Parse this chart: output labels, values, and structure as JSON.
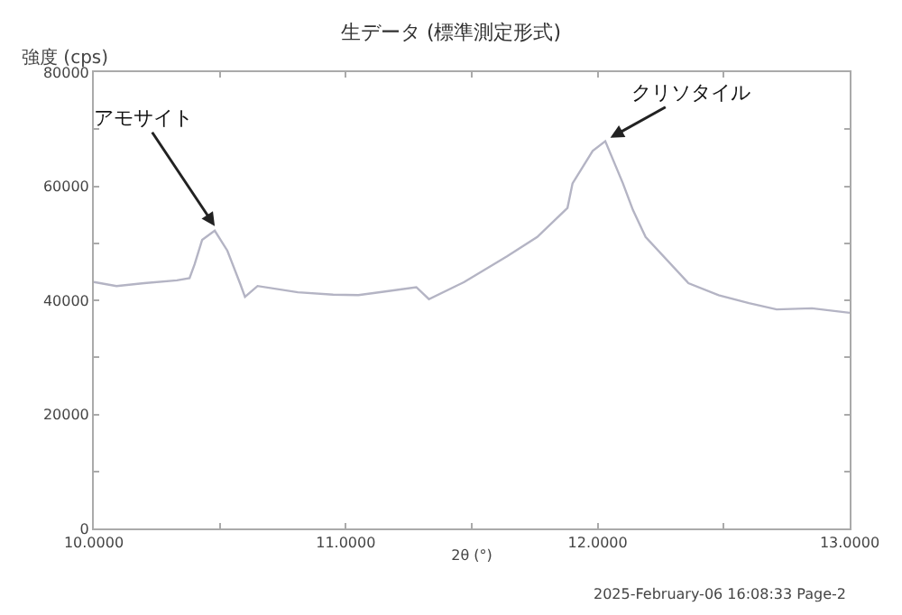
{
  "chart_data": {
    "type": "line",
    "title": "生データ (標準測定形式)",
    "xlabel": "2θ (°)",
    "ylabel": "強度 (cps)",
    "x": [
      10.0,
      10.09,
      10.2,
      10.33,
      10.38,
      10.4,
      10.43,
      10.48,
      10.53,
      10.58,
      10.6,
      10.65,
      10.81,
      10.95,
      11.05,
      11.15,
      11.28,
      11.33,
      11.47,
      11.64,
      11.76,
      11.88,
      11.9,
      11.98,
      12.03,
      12.1,
      12.14,
      12.19,
      12.36,
      12.48,
      12.6,
      12.71,
      12.85,
      13.0
    ],
    "series": [
      {
        "color": "#b4b4c4",
        "values": [
          43200,
          42500,
          43000,
          43500,
          43900,
          46300,
          50600,
          52200,
          48700,
          43000,
          40600,
          42500,
          41400,
          41000,
          40900,
          41500,
          42300,
          40200,
          43200,
          47700,
          51100,
          56200,
          60500,
          66200,
          67900,
          60500,
          55800,
          51100,
          43000,
          40900,
          39500,
          38400,
          38600,
          37800
        ]
      }
    ],
    "xlim": [
      10,
      13
    ],
    "xticks": [
      {
        "value": 10,
        "label": "10.0000"
      },
      {
        "value": 10.5,
        "label": null
      },
      {
        "value": 11,
        "label": "11.0000"
      },
      {
        "value": 11.5,
        "label": null
      },
      {
        "value": 12,
        "label": "12.0000"
      },
      {
        "value": 12.5,
        "label": null
      },
      {
        "value": 13,
        "label": "13.0000"
      }
    ],
    "ylim": [
      0,
      80000
    ],
    "yticks": [
      0,
      {
        "value": 10000,
        "label": null
      },
      20000,
      {
        "value": 30000,
        "label": null
      },
      40000,
      {
        "value": 50000,
        "label": null
      },
      60000,
      {
        "value": 70000,
        "label": null
      },
      80000
    ],
    "marker": "none",
    "line_style": "solid",
    "annotations": [
      {
        "text": "アモサイト",
        "x": 10.48,
        "y": 53000
      },
      {
        "text": "クリソタイル",
        "x": 12.05,
        "y": 68500
      },
      "2025-February-06 16:08:33 Page-2"
    ]
  }
}
